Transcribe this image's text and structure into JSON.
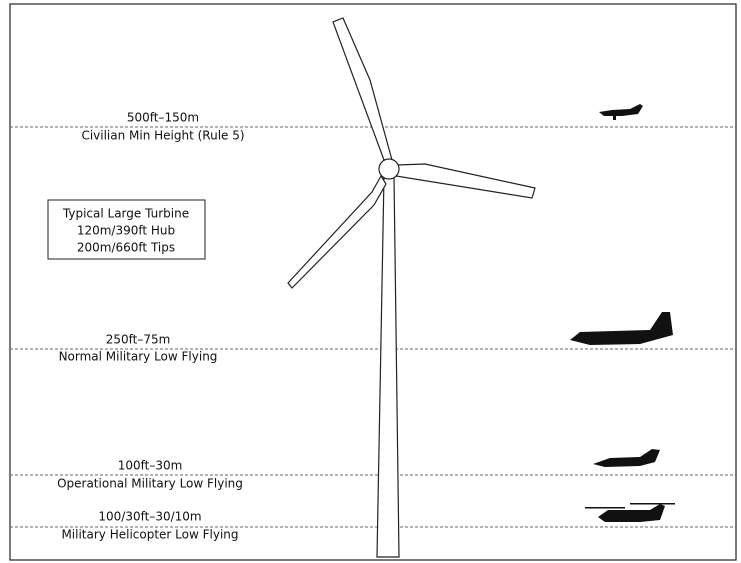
{
  "levels": [
    {
      "height": "500ft–150m",
      "description": "Civilian Min Height (Rule 5)"
    },
    {
      "height": "250ft–75m",
      "description": "Normal Military Low Flying"
    },
    {
      "height": "100ft–30m",
      "description": "Operational Military Low Flying"
    },
    {
      "height": "100/30ft–30/10m",
      "description": "Military Helicopter Low Flying"
    }
  ],
  "info_box": {
    "lines": [
      "Typical Large Turbine",
      "120m/390ft Hub",
      "200m/660ft Tips"
    ]
  }
}
